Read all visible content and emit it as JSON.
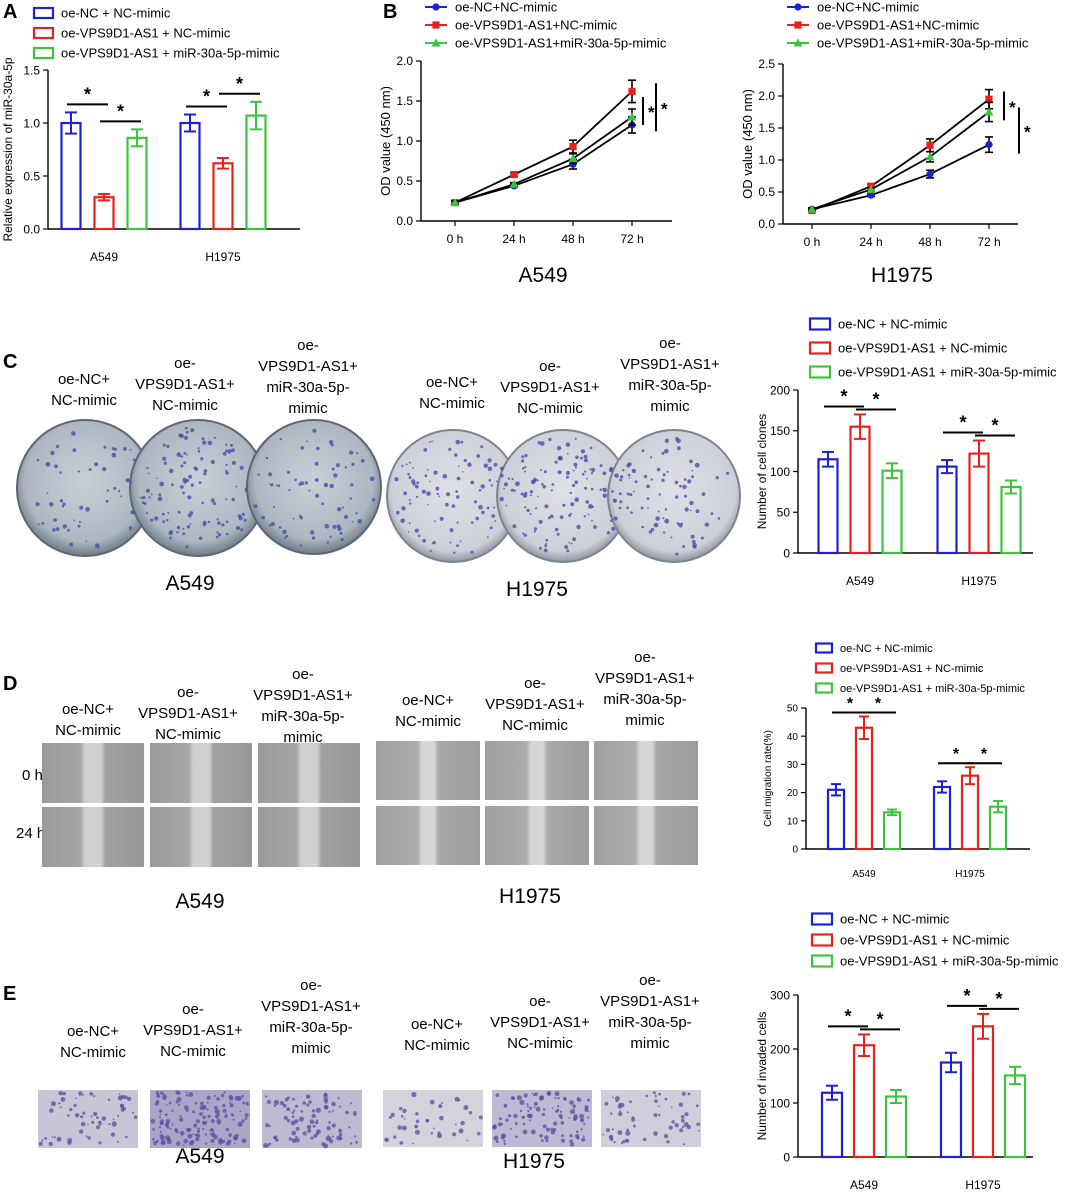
{
  "colors": {
    "blue": "#1f1fd6",
    "red": "#e8221b",
    "green": "#3cc43c",
    "black": "#000000"
  },
  "panels": {
    "A": {
      "label": "A",
      "legend": [
        "oe-NC + NC-mimic",
        "oe-VPS9D1-AS1 + NC-mimic",
        "oe-VPS9D1-AS1 + miR-30a-5p-mimic"
      ]
    },
    "B": {
      "label": "B",
      "legend": [
        "oe-NC+NC-mimic",
        "oe-VPS9D1-AS1+NC-mimic",
        "oe-VPS9D1-AS1+miR-30a-5p-mimic"
      ],
      "captions": [
        "A549",
        "H1975"
      ]
    },
    "C": {
      "label": "C",
      "legend": [
        "oe-NC + NC-mimic",
        "oe-VPS9D1-AS1 + NC-mimic",
        "oe-VPS9D1-AS1 + miR-30a-5p-mimic"
      ],
      "captions": [
        "A549",
        "H1975"
      ]
    },
    "D": {
      "label": "D",
      "legend": [
        "oe-NC + NC-mimic",
        "oe-VPS9D1-AS1 + NC-mimic",
        "oe-VPS9D1-AS1 + miR-30a-5p-mimic"
      ],
      "captions": [
        "A549",
        "H1975"
      ],
      "rows": [
        "0 h",
        "24 h"
      ]
    },
    "E": {
      "label": "E",
      "legend": [
        "oe-NC + NC-mimic",
        "oe-VPS9D1-AS1 + NC-mimic",
        "oe-VPS9D1-AS1 + miR-30a-5p-mimic"
      ],
      "captions": [
        "A549",
        "H1975"
      ]
    }
  },
  "group_labels": {
    "g1": [
      "oe-NC+",
      "NC-mimic"
    ],
    "g2": [
      "oe-",
      "VPS9D1-AS1+",
      "NC-mimic"
    ],
    "g3": [
      "oe-",
      "VPS9D1-AS1+",
      "miR-30a-5p-",
      "mimic"
    ]
  },
  "sig": "*",
  "chart_data": [
    {
      "id": "A",
      "type": "bar",
      "categories": [
        "A549",
        "H1975"
      ],
      "ylabel": "Relative  expression of miR-30a-5p",
      "ylim": [
        0,
        1.5
      ],
      "yticks": [
        "0.0",
        "0.5",
        "1.0",
        "1.5"
      ],
      "series": [
        {
          "name": "oe-NC + NC-mimic",
          "values": [
            1.0,
            1.0
          ],
          "err": [
            0.1,
            0.08
          ]
        },
        {
          "name": "oe-VPS9D1-AS1 + NC-mimic",
          "values": [
            0.3,
            0.62
          ],
          "err": [
            0.03,
            0.05
          ]
        },
        {
          "name": "oe-VPS9D1-AS1 + miR-30a-5p-mimic",
          "values": [
            0.86,
            1.07
          ],
          "err": [
            0.08,
            0.13
          ]
        }
      ]
    },
    {
      "id": "B1",
      "type": "line",
      "title": "A549",
      "x": [
        "0 h",
        "24 h",
        "48 h",
        "72 h"
      ],
      "ylabel": "OD value (450 nm)",
      "ylim": [
        0,
        2.0
      ],
      "yticks": [
        "0.0",
        "0.5",
        "1.0",
        "1.5",
        "2.0"
      ],
      "series": [
        {
          "name": "oe-NC+NC-mimic",
          "values": [
            0.23,
            0.44,
            0.71,
            1.2
          ],
          "err": [
            0.02,
            0.02,
            0.06,
            0.1
          ]
        },
        {
          "name": "oe-VPS9D1-AS1+NC-mimic",
          "values": [
            0.23,
            0.58,
            0.93,
            1.62
          ],
          "err": [
            0.02,
            0.02,
            0.08,
            0.14
          ]
        },
        {
          "name": "oe-VPS9D1-AS1+miR-30a-5p-mimic",
          "values": [
            0.23,
            0.46,
            0.78,
            1.3
          ],
          "err": [
            0.02,
            0.02,
            0.06,
            0.1
          ]
        }
      ]
    },
    {
      "id": "B2",
      "type": "line",
      "title": "H1975",
      "x": [
        "0 h",
        "24 h",
        "48 h",
        "72 h"
      ],
      "ylabel": "OD value (450 nm)",
      "ylim": [
        0,
        2.5
      ],
      "yticks": [
        "0.0",
        "0.5",
        "1.0",
        "1.5",
        "2.0",
        "2.5"
      ],
      "series": [
        {
          "name": "oe-NC+NC-mimic",
          "values": [
            0.23,
            0.45,
            0.78,
            1.24
          ],
          "err": [
            0.02,
            0.02,
            0.06,
            0.12
          ]
        },
        {
          "name": "oe-VPS9D1-AS1+NC-mimic",
          "values": [
            0.21,
            0.59,
            1.23,
            1.95
          ],
          "err": [
            0.02,
            0.03,
            0.1,
            0.15
          ]
        },
        {
          "name": "oe-VPS9D1-AS1+miR-30a-5p-mimic",
          "values": [
            0.23,
            0.54,
            1.05,
            1.75
          ],
          "err": [
            0.02,
            0.03,
            0.08,
            0.15
          ]
        }
      ]
    },
    {
      "id": "C",
      "type": "bar",
      "categories": [
        "A549",
        "H1975"
      ],
      "ylabel": "Number of cell clones",
      "ylim": [
        0,
        200
      ],
      "yticks": [
        "0",
        "50",
        "100",
        "150",
        "200"
      ],
      "series": [
        {
          "name": "oe-NC + NC-mimic",
          "values": [
            115,
            106
          ],
          "err": [
            9,
            8
          ]
        },
        {
          "name": "oe-VPS9D1-AS1 + NC-mimic",
          "values": [
            155,
            122
          ],
          "err": [
            15,
            16
          ]
        },
        {
          "name": "oe-VPS9D1-AS1 + miR-30a-5p-mimic",
          "values": [
            101,
            81
          ],
          "err": [
            9,
            8
          ]
        }
      ]
    },
    {
      "id": "D",
      "type": "bar",
      "categories": [
        "A549",
        "H1975"
      ],
      "ylabel": "Cell migration rate(%)",
      "ylim": [
        0,
        50
      ],
      "yticks": [
        "0",
        "10",
        "20",
        "30",
        "40",
        "50"
      ],
      "series": [
        {
          "name": "oe-NC + NC-mimic",
          "values": [
            21,
            22
          ],
          "err": [
            2,
            2
          ]
        },
        {
          "name": "oe-VPS9D1-AS1 + NC-mimic",
          "values": [
            43,
            26
          ],
          "err": [
            4,
            3
          ]
        },
        {
          "name": "oe-VPS9D1-AS1 + miR-30a-5p-mimic",
          "values": [
            13,
            15
          ],
          "err": [
            1,
            2
          ]
        }
      ]
    },
    {
      "id": "E",
      "type": "bar",
      "categories": [
        "A549",
        "H1975"
      ],
      "ylabel": "Number of invaded cells",
      "ylim": [
        0,
        300
      ],
      "yticks": [
        "0",
        "100",
        "200",
        "300"
      ],
      "series": [
        {
          "name": "oe-NC + NC-mimic",
          "values": [
            119,
            175
          ],
          "err": [
            13,
            18
          ]
        },
        {
          "name": "oe-VPS9D1-AS1 + NC-mimic",
          "values": [
            207,
            242
          ],
          "err": [
            20,
            23
          ]
        },
        {
          "name": "oe-VPS9D1-AS1 + miR-30a-5p-mimic",
          "values": [
            112,
            151
          ],
          "err": [
            12,
            16
          ]
        }
      ]
    }
  ]
}
